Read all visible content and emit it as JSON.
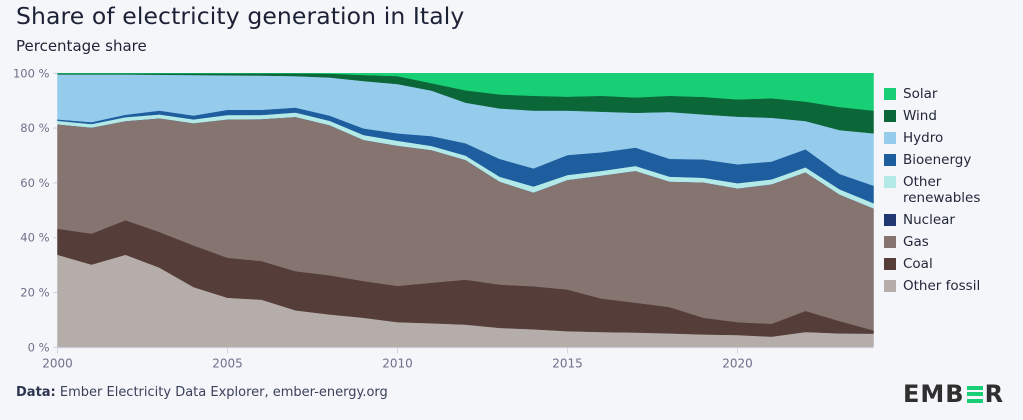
{
  "header": {
    "title": "Share of electricity generation in Italy",
    "subtitle": "Percentage share"
  },
  "footer": {
    "source_label": "Data:",
    "source_text": " Ember Electricity Data Explorer, ember-energy.org",
    "logo_parts": [
      "EMB",
      "R"
    ]
  },
  "chart_data": {
    "type": "area",
    "stacked": true,
    "title": "Share of electricity generation in Italy",
    "subtitle": "Percentage share",
    "xlabel": "",
    "ylabel": "",
    "x": [
      2000,
      2001,
      2002,
      2003,
      2004,
      2005,
      2006,
      2007,
      2008,
      2009,
      2010,
      2011,
      2012,
      2013,
      2014,
      2015,
      2016,
      2017,
      2018,
      2019,
      2020,
      2021,
      2022,
      2023,
      2024
    ],
    "xlim": [
      2000,
      2024
    ],
    "ylim": [
      0,
      100
    ],
    "x_ticks": [
      2000,
      2005,
      2010,
      2015,
      2020
    ],
    "y_ticks": [
      0,
      20,
      40,
      60,
      80,
      100
    ],
    "y_tick_labels": [
      "0 %",
      "20 %",
      "40 %",
      "60 %",
      "80 %",
      "100 %"
    ],
    "grid": false,
    "legend_position": "right",
    "series": [
      {
        "name": "Other fossil",
        "color": "#b5adaa",
        "values": [
          33.8,
          30.2,
          33.8,
          29.1,
          22.0,
          18.1,
          17.4,
          13.5,
          12.0,
          10.8,
          9.2,
          8.8,
          8.3,
          7.1,
          6.6,
          5.9,
          5.6,
          5.4,
          5.1,
          4.7,
          4.5,
          3.9,
          5.6,
          5.1,
          5.0
        ]
      },
      {
        "name": "Coal",
        "color": "#553e39",
        "values": [
          9.5,
          11.3,
          12.6,
          13.0,
          15.2,
          14.6,
          14.1,
          14.3,
          14.3,
          13.4,
          13.2,
          14.8,
          16.4,
          15.8,
          15.7,
          15.2,
          12.2,
          10.9,
          9.6,
          6.1,
          4.7,
          4.7,
          7.7,
          4.5,
          1.2
        ]
      },
      {
        "name": "Gas",
        "color": "#857470",
        "values": [
          38.1,
          38.7,
          36.2,
          41.5,
          44.6,
          50.5,
          51.8,
          56.3,
          54.8,
          51.5,
          51.2,
          48.4,
          43.7,
          37.6,
          34.2,
          40.0,
          44.9,
          48.1,
          45.8,
          49.4,
          48.8,
          50.9,
          50.6,
          46.2,
          44.5
        ]
      },
      {
        "name": "Nuclear",
        "color": "#1f3872",
        "values": [
          0,
          0,
          0,
          0,
          0,
          0,
          0,
          0,
          0,
          0,
          0,
          0,
          0,
          0,
          0,
          0,
          0,
          0,
          0,
          0,
          0,
          0,
          0,
          0,
          0
        ]
      },
      {
        "name": "Other renewables",
        "color": "#b3e9e6",
        "values": [
          1.3,
          1.3,
          1.4,
          1.4,
          1.4,
          1.6,
          1.5,
          1.6,
          1.6,
          1.8,
          1.8,
          1.5,
          1.6,
          1.8,
          2.2,
          1.8,
          1.7,
          1.8,
          1.8,
          1.7,
          1.9,
          1.8,
          1.8,
          1.9,
          1.9
        ]
      },
      {
        "name": "Bioenergy",
        "color": "#1e5e9f",
        "values": [
          0.5,
          0.7,
          0.9,
          1.4,
          1.4,
          1.9,
          1.9,
          1.8,
          1.9,
          2.4,
          2.7,
          3.6,
          4.5,
          6.5,
          6.6,
          7.3,
          6.8,
          6.7,
          6.5,
          6.7,
          6.9,
          6.5,
          6.6,
          5.6,
          6.4
        ]
      },
      {
        "name": "Hydro",
        "color": "#95ccec",
        "values": [
          16.4,
          17.4,
          14.7,
          13.1,
          14.8,
          12.6,
          12.5,
          11.5,
          13.9,
          17.3,
          18.0,
          16.6,
          14.8,
          18.4,
          21.1,
          16.2,
          14.8,
          12.7,
          17.1,
          16.4,
          17.4,
          16.0,
          10.3,
          16.0,
          19.1
        ]
      },
      {
        "name": "Wind",
        "color": "#0b6638",
        "values": [
          0.4,
          0.4,
          0.4,
          0.5,
          0.6,
          0.7,
          0.8,
          1.0,
          1.4,
          2.2,
          2.9,
          2.7,
          4.5,
          5.1,
          5.4,
          5.1,
          5.8,
          5.6,
          5.9,
          6.4,
          6.3,
          7.1,
          7.1,
          8.4,
          8.3
        ]
      },
      {
        "name": "Solar",
        "color": "#18cf76",
        "values": [
          0,
          0,
          0,
          0,
          0,
          0,
          0,
          0,
          0.1,
          0.6,
          1.0,
          3.6,
          6.2,
          7.7,
          8.2,
          8.5,
          8.2,
          8.8,
          8.2,
          8.6,
          9.5,
          9.1,
          10.3,
          12.3,
          13.6
        ]
      }
    ],
    "legend": [
      {
        "label": "Solar",
        "color": "#18cf76"
      },
      {
        "label": "Wind",
        "color": "#0b6638"
      },
      {
        "label": "Hydro",
        "color": "#95ccec"
      },
      {
        "label": "Bioenergy",
        "color": "#1e5e9f"
      },
      {
        "label": "Other\nrenewables",
        "color": "#b3e9e6"
      },
      {
        "label": "Nuclear",
        "color": "#1f3872"
      },
      {
        "label": "Gas",
        "color": "#857470"
      },
      {
        "label": "Coal",
        "color": "#553e39"
      },
      {
        "label": "Other fossil",
        "color": "#b5adaa"
      }
    ]
  }
}
